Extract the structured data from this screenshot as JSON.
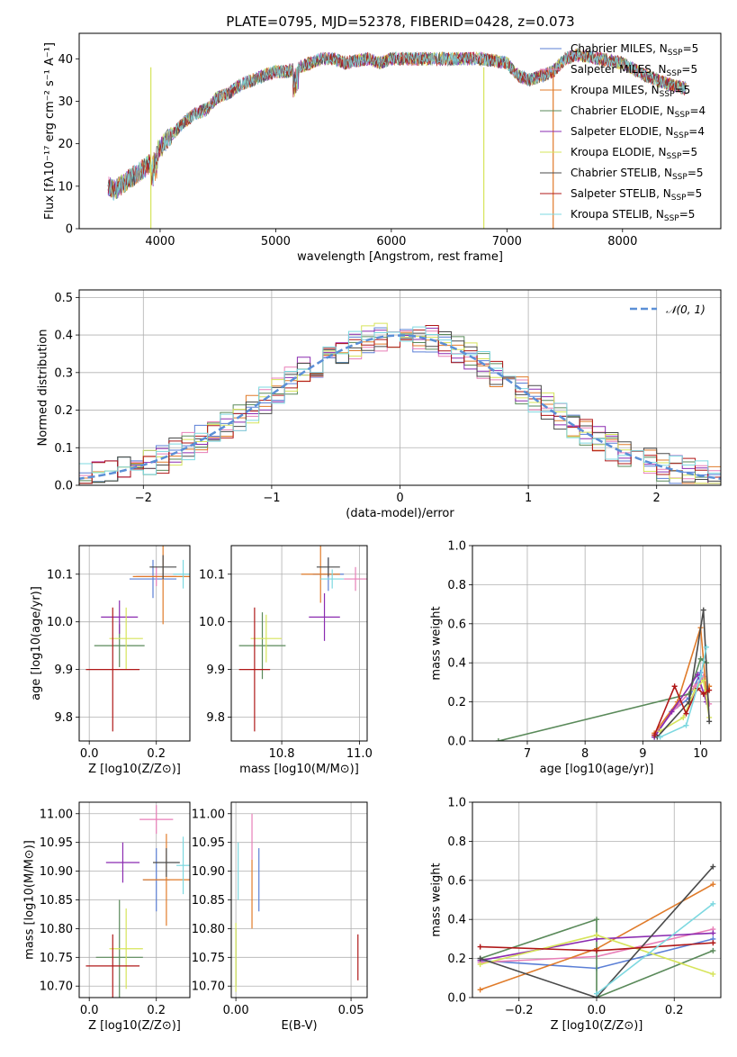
{
  "figure": {
    "title": "PLATE=0795, MJD=52378, FIBERID=0428, z=0.073"
  },
  "colors": {
    "Chabrier MILES": "#5b7fd6",
    "Salpeter MILES": "#e87fb8",
    "Kroupa MILES": "#e07b2a",
    "Chabrier ELODIE": "#5a8a5a",
    "Salpeter ELODIE": "#8b2bb0",
    "Kroupa ELODIE": "#d6e45a",
    "Chabrier STELIB": "#4a4a4a",
    "Salpeter STELIB": "#b01818",
    "Kroupa STELIB": "#7dd8e0",
    "gaussian": "#5b8fd6"
  },
  "chart_data": [
    {
      "id": "spectrum",
      "type": "line",
      "title": "PLATE=0795, MJD=52378, FIBERID=0428, z=0.073",
      "xlabel": "wavelength [Angstrom, rest frame]",
      "ylabel": "Flux [fλ10⁻¹⁷ erg cm⁻² s⁻¹ A⁻¹]",
      "xlim": [
        3300,
        8850
      ],
      "ylim": [
        0,
        46
      ],
      "xticks": [
        "4000",
        "5000",
        "6000",
        "7000",
        "8000"
      ],
      "yticks": [
        "0",
        "10",
        "20",
        "30",
        "40"
      ],
      "grid": false,
      "legend_position": "top-right",
      "legend": [
        "Chabrier MILES, N_SSP=5",
        "Salpeter MILES, N_SSP=5",
        "Kroupa MILES, N_SSP=5",
        "Chabrier ELODIE, N_SSP=4",
        "Salpeter ELODIE, N_SSP=4",
        "Kroupa ELODIE, N_SSP=5",
        "Chabrier STELIB, N_SSP=5",
        "Salpeter STELIB, N_SSP=5",
        "Kroupa STELIB, N_SSP=5"
      ],
      "continuum": {
        "x": [
          3550,
          3600,
          3700,
          3800,
          3900,
          3950,
          4000,
          4100,
          4200,
          4300,
          4400,
          4500,
          4600,
          4700,
          4800,
          4900,
          5000,
          5100,
          5200,
          5300,
          5400,
          5500,
          5600,
          5800,
          5900,
          6000,
          6200,
          6400,
          6600,
          6800,
          7000,
          7100,
          7200,
          7400,
          7500,
          7600,
          7800,
          8000,
          8200,
          8400,
          8550
        ],
        "y": [
          10,
          9,
          11,
          13,
          15,
          17,
          19,
          22,
          25,
          27,
          28,
          31,
          32,
          34,
          35,
          36,
          37,
          37,
          38,
          39,
          40,
          40,
          39,
          40,
          39,
          40,
          40,
          40,
          40,
          40,
          39,
          36,
          35,
          37,
          40,
          41,
          40,
          39,
          36,
          34,
          33
        ]
      }
    },
    {
      "id": "residuals",
      "type": "bar",
      "xlabel": "(data-model)/error",
      "ylabel": "Normed distribution",
      "xlim": [
        -2.5,
        2.5
      ],
      "ylim": [
        0,
        0.52
      ],
      "xticks": [
        "−2",
        "−1",
        "0",
        "1",
        "2"
      ],
      "yticks": [
        "0.0",
        "0.1",
        "0.2",
        "0.3",
        "0.4",
        "0.5"
      ],
      "grid": true,
      "legend": [
        "𝒩(0, 1)"
      ],
      "legend_position": "top-right",
      "bin_width": 0.1,
      "gaussian": {
        "mu": 0,
        "sigma": 1
      }
    },
    {
      "id": "z-age",
      "type": "scatter",
      "xlabel": "Z [log10(Z/Z⊙)]",
      "ylabel": "age  [log10(age/yr)]",
      "xlim": [
        -0.03,
        0.3
      ],
      "ylim": [
        9.75,
        10.16
      ],
      "xticks": [
        "0.0",
        "0.2"
      ],
      "yticks": [
        "9.8",
        "9.9",
        "10.0",
        "10.1"
      ],
      "grid": true,
      "points": [
        {
          "model": "Chabrier MILES",
          "x": 0.19,
          "y": 10.09,
          "xerr": 0.07,
          "yerr": 0.04
        },
        {
          "model": "Salpeter MILES",
          "x": 0.2,
          "y": 10.095,
          "xerr": 0.06,
          "yerr": 0.02
        },
        {
          "model": "Kroupa MILES",
          "x": 0.22,
          "y": 10.095,
          "xerr": 0.09,
          "yerr": 0.1
        },
        {
          "model": "Chabrier ELODIE",
          "x": 0.09,
          "y": 9.95,
          "xerr": 0.075,
          "yerr": 0.045
        },
        {
          "model": "Salpeter ELODIE",
          "x": 0.09,
          "y": 10.01,
          "xerr": 0.055,
          "yerr": 0.035
        },
        {
          "model": "Kroupa ELODIE",
          "x": 0.11,
          "y": 9.965,
          "xerr": 0.05,
          "yerr": 0.065
        },
        {
          "model": "Chabrier STELIB",
          "x": 0.22,
          "y": 10.115,
          "xerr": 0.04,
          "yerr": 0.025
        },
        {
          "model": "Salpeter STELIB",
          "x": 0.07,
          "y": 9.9,
          "xerr": 0.08,
          "yerr": 0.13
        },
        {
          "model": "Kroupa STELIB",
          "x": 0.28,
          "y": 10.1,
          "xerr": 0.03,
          "yerr": 0.03
        }
      ]
    },
    {
      "id": "mass-age",
      "type": "scatter",
      "xlabel": "mass [log10(M/M⊙)]",
      "ylabel": "",
      "xlim": [
        10.67,
        11.02
      ],
      "ylim": [
        9.75,
        10.16
      ],
      "xticks": [
        "10.8",
        "11.0"
      ],
      "yticks": [
        "9.8",
        "9.9",
        "10.0",
        "10.1"
      ],
      "grid": true,
      "points": [
        {
          "model": "Chabrier MILES",
          "x": 10.92,
          "y": 10.1,
          "xerr": 0.04,
          "yerr": 0.035
        },
        {
          "model": "Salpeter MILES",
          "x": 10.99,
          "y": 10.09,
          "xerr": 0.03,
          "yerr": 0.025
        },
        {
          "model": "Kroupa MILES",
          "x": 10.9,
          "y": 10.1,
          "xerr": 0.05,
          "yerr": 0.06
        },
        {
          "model": "Chabrier ELODIE",
          "x": 10.75,
          "y": 9.95,
          "xerr": 0.06,
          "yerr": 0.07
        },
        {
          "model": "Salpeter ELODIE",
          "x": 10.91,
          "y": 10.01,
          "xerr": 0.04,
          "yerr": 0.05
        },
        {
          "model": "Kroupa ELODIE",
          "x": 10.76,
          "y": 9.965,
          "xerr": 0.04,
          "yerr": 0.05
        },
        {
          "model": "Chabrier STELIB",
          "x": 10.92,
          "y": 10.115,
          "xerr": 0.03,
          "yerr": 0.02
        },
        {
          "model": "Salpeter STELIB",
          "x": 10.73,
          "y": 9.9,
          "xerr": 0.04,
          "yerr": 0.13
        },
        {
          "model": "Kroupa STELIB",
          "x": 10.93,
          "y": 10.09,
          "xerr": 0.03,
          "yerr": 0.02
        }
      ]
    },
    {
      "id": "age-weight",
      "type": "line",
      "xlabel": "age  [log10(age/yr)]",
      "ylabel": "mass weight",
      "xlim": [
        6.05,
        10.35
      ],
      "ylim": [
        0,
        1
      ],
      "xticks": [
        "7",
        "8",
        "9",
        "10"
      ],
      "yticks": [
        "0.0",
        "0.2",
        "0.4",
        "0.6",
        "0.8",
        "1.0"
      ],
      "grid": true,
      "series": [
        {
          "model": "Chabrier MILES",
          "x": [
            9.2,
            9.5,
            9.8,
            10.0,
            10.1
          ],
          "y": [
            0.02,
            0.15,
            0.22,
            0.35,
            0.26
          ]
        },
        {
          "model": "Salpeter MILES",
          "x": [
            9.2,
            9.6,
            9.9,
            10.05,
            10.15
          ],
          "y": [
            0.03,
            0.18,
            0.28,
            0.33,
            0.19
          ]
        },
        {
          "model": "Kroupa MILES",
          "x": [
            9.2,
            9.6,
            10.0,
            10.1,
            10.15
          ],
          "y": [
            0.04,
            0.2,
            0.58,
            0.25,
            0.28
          ]
        },
        {
          "model": "Chabrier ELODIE",
          "x": [
            6.5,
            9.8,
            10.0,
            10.1
          ],
          "y": [
            0.0,
            0.24,
            0.42,
            0.4
          ]
        },
        {
          "model": "Salpeter ELODIE",
          "x": [
            9.2,
            9.5,
            9.95,
            10.1
          ],
          "y": [
            0.02,
            0.15,
            0.34,
            0.2
          ]
        },
        {
          "model": "Kroupa ELODIE",
          "x": [
            9.3,
            9.7,
            9.9,
            10.05,
            10.15
          ],
          "y": [
            0.05,
            0.12,
            0.26,
            0.31,
            0.12
          ]
        },
        {
          "model": "Chabrier STELIB",
          "x": [
            9.25,
            9.8,
            10.05,
            10.15
          ],
          "y": [
            0.02,
            0.2,
            0.67,
            0.1
          ]
        },
        {
          "model": "Salpeter STELIB",
          "x": [
            9.2,
            9.55,
            9.75,
            9.95,
            10.05,
            10.15
          ],
          "y": [
            0.03,
            0.28,
            0.14,
            0.27,
            0.24,
            0.26
          ]
        },
        {
          "model": "Kroupa STELIB",
          "x": [
            9.3,
            9.75,
            10.0,
            10.1
          ],
          "y": [
            0.02,
            0.08,
            0.33,
            0.48
          ]
        }
      ]
    },
    {
      "id": "z-mass",
      "type": "scatter",
      "xlabel": "Z [log10(Z/Z⊙)]",
      "ylabel": "mass [log10(M/M⊙)]",
      "xlim": [
        -0.03,
        0.3
      ],
      "ylim": [
        10.68,
        11.02
      ],
      "xticks": [
        "0.0",
        "0.2"
      ],
      "yticks": [
        "10.70",
        "10.75",
        "10.80",
        "10.85",
        "10.90",
        "10.95",
        "11.00"
      ],
      "grid": true,
      "points": [
        {
          "model": "Chabrier MILES",
          "x": 0.2,
          "y": 10.885,
          "xerr": 0.04,
          "yerr": 0.055
        },
        {
          "model": "Salpeter MILES",
          "x": 0.2,
          "y": 10.99,
          "xerr": 0.05,
          "yerr": 0.025
        },
        {
          "model": "Kroupa MILES",
          "x": 0.23,
          "y": 10.885,
          "xerr": 0.07,
          "yerr": 0.08
        },
        {
          "model": "Chabrier ELODIE",
          "x": 0.09,
          "y": 10.75,
          "xerr": 0.07,
          "yerr": 0.1
        },
        {
          "model": "Salpeter ELODIE",
          "x": 0.1,
          "y": 10.915,
          "xerr": 0.05,
          "yerr": 0.035
        },
        {
          "model": "Kroupa ELODIE",
          "x": 0.11,
          "y": 10.765,
          "xerr": 0.05,
          "yerr": 0.07
        },
        {
          "model": "Chabrier STELIB",
          "x": 0.23,
          "y": 10.915,
          "xerr": 0.04,
          "yerr": 0.025
        },
        {
          "model": "Salpeter STELIB",
          "x": 0.07,
          "y": 10.735,
          "xerr": 0.08,
          "yerr": 0.055
        },
        {
          "model": "Kroupa STELIB",
          "x": 0.28,
          "y": 10.91,
          "xerr": 0.02,
          "yerr": 0.05
        }
      ]
    },
    {
      "id": "ebv-mass",
      "type": "scatter",
      "xlabel": "E(B-V)",
      "ylabel": "",
      "xlim": [
        -0.002,
        0.057
      ],
      "ylim": [
        10.68,
        11.02
      ],
      "xticks": [
        "0.00",
        "0.05"
      ],
      "yticks": [
        "10.70",
        "10.75",
        "10.80",
        "10.85",
        "10.90",
        "10.95",
        "11.00"
      ],
      "grid": true,
      "points": [
        {
          "model": "Chabrier MILES",
          "x": 0.01,
          "y": 10.885,
          "xerr": 0,
          "yerr": 0.055
        },
        {
          "model": "Salpeter MILES",
          "x": 0.007,
          "y": 10.96,
          "xerr": 0,
          "yerr": 0.04
        },
        {
          "model": "Kroupa MILES",
          "x": 0.007,
          "y": 10.86,
          "xerr": 0,
          "yerr": 0.06
        },
        {
          "model": "Chabrier ELODIE",
          "x": 0.0,
          "y": 10.75,
          "xerr": 0,
          "yerr": 0.05
        },
        {
          "model": "Kroupa ELODIE",
          "x": 0.0,
          "y": 10.75,
          "xerr": 0,
          "yerr": 0.06
        },
        {
          "model": "Kroupa STELIB",
          "x": 0.001,
          "y": 10.9,
          "xerr": 0,
          "yerr": 0.05
        },
        {
          "model": "Salpeter STELIB",
          "x": 0.053,
          "y": 10.75,
          "xerr": 0,
          "yerr": 0.04
        }
      ]
    },
    {
      "id": "z-weight",
      "type": "line",
      "xlabel": "Z [log10(Z/Z⊙)]",
      "ylabel": "mass weight",
      "xlim": [
        -0.32,
        0.32
      ],
      "ylim": [
        0,
        1
      ],
      "xticks": [
        "−0.2",
        "0.0",
        "0.2"
      ],
      "yticks": [
        "0.0",
        "0.2",
        "0.4",
        "0.6",
        "0.8",
        "1.0"
      ],
      "grid": true,
      "series": [
        {
          "model": "Chabrier MILES",
          "x": [
            -0.3,
            0.0,
            0.3
          ],
          "y": [
            0.19,
            0.15,
            0.3
          ]
        },
        {
          "model": "Salpeter MILES",
          "x": [
            -0.3,
            0.0,
            0.3
          ],
          "y": [
            0.18,
            0.21,
            0.35
          ]
        },
        {
          "model": "Kroupa MILES",
          "x": [
            -0.3,
            0.0,
            0.3
          ],
          "y": [
            0.04,
            0.25,
            0.58
          ]
        },
        {
          "model": "Chabrier ELODIE",
          "x": [
            -0.3,
            0.0,
            0.0,
            0.3
          ],
          "y": [
            0.2,
            0.4,
            0.0,
            0.24
          ]
        },
        {
          "model": "Salpeter ELODIE",
          "x": [
            -0.3,
            0.0,
            0.3
          ],
          "y": [
            0.19,
            0.3,
            0.33
          ]
        },
        {
          "model": "Kroupa ELODIE",
          "x": [
            -0.3,
            0.0,
            0.3
          ],
          "y": [
            0.17,
            0.32,
            0.12
          ]
        },
        {
          "model": "Chabrier STELIB",
          "x": [
            -0.3,
            0.0,
            0.3
          ],
          "y": [
            0.2,
            0.0,
            0.67
          ]
        },
        {
          "model": "Salpeter STELIB",
          "x": [
            -0.3,
            0.0,
            0.3
          ],
          "y": [
            0.26,
            0.24,
            0.28
          ]
        },
        {
          "model": "Kroupa STELIB",
          "x": [
            0.0,
            0.3
          ],
          "y": [
            0.02,
            0.48
          ]
        }
      ]
    }
  ]
}
